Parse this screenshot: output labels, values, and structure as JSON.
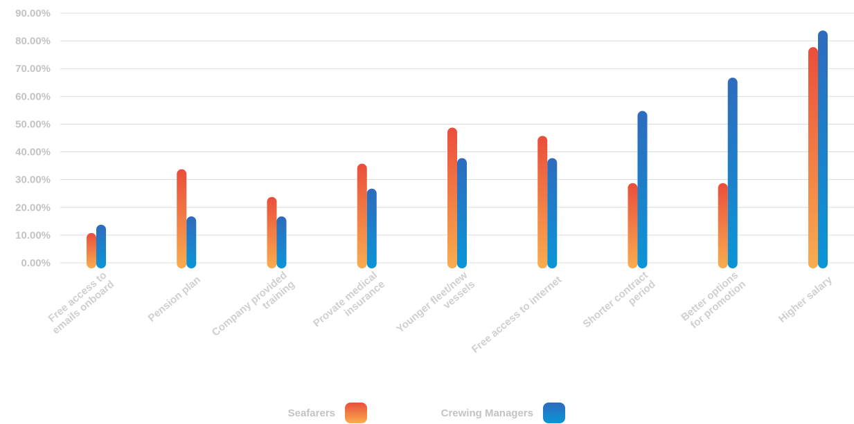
{
  "chart_data": {
    "type": "bar",
    "title": "",
    "xlabel": "",
    "ylabel": "",
    "ylim": [
      0,
      90
    ],
    "yticks": [
      "0.00%",
      "10.00%",
      "20.00%",
      "30.00%",
      "40.00%",
      "50.00%",
      "60.00%",
      "70.00%",
      "80.00%",
      "90.00%"
    ],
    "grid": true,
    "legend_position": "bottom",
    "categories": [
      [
        "Free access to",
        "emails onboard"
      ],
      [
        "Pension plan"
      ],
      [
        "Company provided",
        "training"
      ],
      [
        "Provate medical",
        "insurance"
      ],
      [
        "Younger fleet/new",
        "vessels"
      ],
      [
        "Free access to internet"
      ],
      [
        "Shorter contract",
        "period"
      ],
      [
        "Better options",
        "for promotion"
      ],
      [
        "Higher salary"
      ]
    ],
    "series": [
      {
        "name": "Seafarers",
        "values": [
          9,
          32,
          22,
          34,
          47,
          44,
          27,
          27,
          76
        ],
        "color_top": "#ea4e3c",
        "color_bottom": "#f9ad4e"
      },
      {
        "name": "Crewing Managers",
        "values": [
          12,
          15,
          15,
          25,
          36,
          36,
          53,
          65,
          82
        ],
        "color_top": "#2e6bbd",
        "color_bottom": "#0b95d6"
      }
    ]
  }
}
